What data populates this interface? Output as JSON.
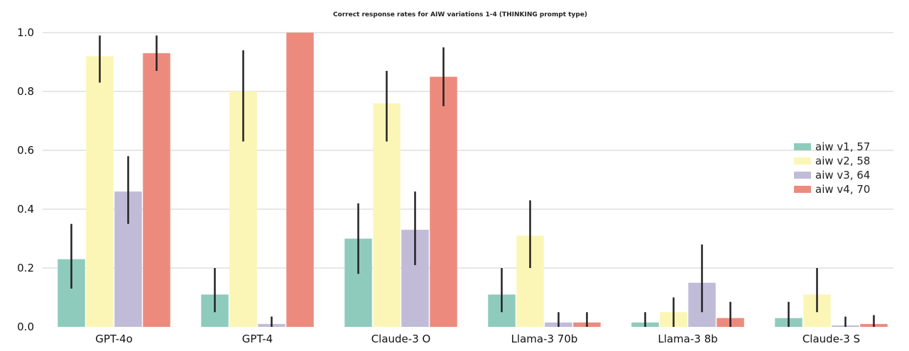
{
  "chart_data": {
    "type": "bar",
    "title": "Correct response rates for AIW variations 1-4 (THINKING prompt type)",
    "xlabel": "",
    "ylabel": "",
    "ylim": [
      0,
      1.0
    ],
    "yticks": [
      "0.0",
      "0.2",
      "0.4",
      "0.6",
      "0.8",
      "1.0"
    ],
    "grid": true,
    "legend_position": "right",
    "categories": [
      "GPT-4o",
      "GPT-4",
      "Claude-3 O",
      "Llama-3 70b",
      "Llama-3 8b",
      "Claude-3 S"
    ],
    "series": [
      {
        "name": "aiw v1, 57",
        "color": "#8fcbbd",
        "values": [
          0.23,
          0.11,
          0.3,
          0.11,
          0.015,
          0.03
        ],
        "err_low": [
          0.13,
          0.05,
          0.18,
          0.05,
          0.0,
          0.0
        ],
        "err_high": [
          0.35,
          0.2,
          0.42,
          0.2,
          0.05,
          0.085
        ]
      },
      {
        "name": "aiw v2, 58",
        "color": "#fbf6b6",
        "values": [
          0.92,
          0.8,
          0.76,
          0.31,
          0.05,
          0.11
        ],
        "err_low": [
          0.83,
          0.63,
          0.63,
          0.2,
          0.0,
          0.05
        ],
        "err_high": [
          0.99,
          0.94,
          0.87,
          0.43,
          0.1,
          0.2
        ]
      },
      {
        "name": "aiw v3, 64",
        "color": "#c0bcd8",
        "values": [
          0.46,
          0.01,
          0.33,
          0.015,
          0.15,
          0.005
        ],
        "err_low": [
          0.35,
          0.0,
          0.21,
          0.0,
          0.05,
          0.0
        ],
        "err_high": [
          0.58,
          0.035,
          0.46,
          0.05,
          0.28,
          0.035
        ]
      },
      {
        "name": "aiw v4, 70",
        "color": "#ec8b7d",
        "values": [
          0.93,
          1.0,
          0.85,
          0.015,
          0.03,
          0.01
        ],
        "err_low": [
          0.87,
          1.0,
          0.75,
          0.0,
          0.0,
          0.0
        ],
        "err_high": [
          0.99,
          1.0,
          0.95,
          0.05,
          0.085,
          0.04
        ]
      }
    ]
  }
}
